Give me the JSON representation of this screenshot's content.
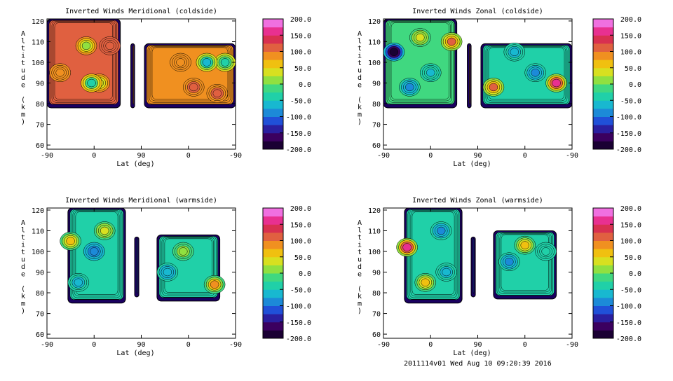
{
  "chart_data": [
    {
      "type": "contour",
      "title": "Inverted Winds Meridional (coldside)",
      "xlabel": "Lat (deg)",
      "ylabel": "Altitude (km)",
      "xticks": [
        "-90",
        "0",
        "90",
        "0",
        "-90"
      ],
      "yticks": [
        "60",
        "70",
        "80",
        "90",
        "100",
        "110",
        "120"
      ],
      "ylim": [
        58,
        121
      ],
      "colorbar_ticks": [
        "200.0",
        "150.0",
        "100.0",
        "50.0",
        "0.0",
        "-50.0",
        "-100.0",
        "-150.0",
        "-200.0"
      ],
      "zlim": [
        -200,
        200
      ],
      "regions": [
        {
          "lat_from": -90,
          "lat_to": 50,
          "alt_from": 78,
          "alt_to": 121,
          "base": 100,
          "blobs": [
            {
              "lat": -65,
              "alt": 95,
              "value": 95
            },
            {
              "lat": 30,
              "alt": 108,
              "value": 110
            },
            {
              "lat": 10,
              "alt": 90,
              "value": 30
            },
            {
              "lat": -5,
              "alt": 90,
              "value": -45
            },
            {
              "lat": -15,
              "alt": 108,
              "value": 10
            }
          ]
        },
        {
          "lat_from": 70,
          "lat_to": 72,
          "alt_from": 78,
          "alt_to": 109,
          "base": 78,
          "blobs": []
        },
        {
          "lat_from": 84,
          "lat_to": -90,
          "alt_from": 78,
          "alt_to": 109,
          "base": 78,
          "blobs": [
            {
              "lat": -10,
              "alt": 88,
              "value": 120
            },
            {
              "lat": -55,
              "alt": 85,
              "value": 110
            },
            {
              "lat": 15,
              "alt": 100,
              "value": 80
            },
            {
              "lat": -70,
              "alt": 100,
              "value": -40
            },
            {
              "lat": -35,
              "alt": 100,
              "value": -60
            }
          ]
        }
      ]
    },
    {
      "type": "contour",
      "title": "Inverted Winds Zonal (coldside)",
      "xlabel": "Lat (deg)",
      "ylabel": "Altitude (km)",
      "xticks": [
        "-90",
        "0",
        "90",
        "0",
        "-90"
      ],
      "yticks": [
        "60",
        "70",
        "80",
        "90",
        "100",
        "110",
        "120"
      ],
      "ylim": [
        58,
        121
      ],
      "colorbar_ticks": [
        "200.0",
        "150.0",
        "100.0",
        "50.0",
        "0.0",
        "-50.0",
        "-100.0",
        "-150.0",
        "-200.0"
      ],
      "zlim": [
        -200,
        200
      ],
      "regions": [
        {
          "lat_from": -90,
          "lat_to": 50,
          "alt_from": 78,
          "alt_to": 121,
          "base": -20,
          "blobs": [
            {
              "lat": -70,
              "alt": 105,
              "value": -200
            },
            {
              "lat": -40,
              "alt": 88,
              "value": -90
            },
            {
              "lat": 40,
              "alt": 110,
              "value": 100
            },
            {
              "lat": -20,
              "alt": 112,
              "value": 30
            },
            {
              "lat": 0,
              "alt": 95,
              "value": -60
            }
          ]
        },
        {
          "lat_from": 70,
          "lat_to": 72,
          "alt_from": 78,
          "alt_to": 109,
          "base": 78,
          "blobs": []
        },
        {
          "lat_from": 84,
          "lat_to": -90,
          "alt_from": 78,
          "alt_to": 109,
          "base": -30,
          "blobs": [
            {
              "lat": -60,
              "alt": 90,
              "value": 170
            },
            {
              "lat": 60,
              "alt": 88,
              "value": 100
            },
            {
              "lat": -20,
              "alt": 95,
              "value": -90
            },
            {
              "lat": 20,
              "alt": 105,
              "value": -60
            }
          ]
        }
      ]
    },
    {
      "type": "contour",
      "title": "Inverted Winds Meridional (warmside)",
      "xlabel": "Lat (deg)",
      "ylabel": "Altitude (km)",
      "xticks": [
        "-90",
        "0",
        "90",
        "0",
        "-90"
      ],
      "yticks": [
        "60",
        "70",
        "80",
        "90",
        "100",
        "110",
        "120"
      ],
      "ylim": [
        58,
        121
      ],
      "colorbar_ticks": [
        "200.0",
        "150.0",
        "100.0",
        "50.0",
        "0.0",
        "-50.0",
        "-100.0",
        "-150.0",
        "-200.0"
      ],
      "zlim": [
        -200,
        200
      ],
      "regions": [
        {
          "lat_from": -50,
          "lat_to": 60,
          "alt_from": 75,
          "alt_to": 121,
          "base": -40,
          "blobs": [
            {
              "lat": -45,
              "alt": 105,
              "value": 60
            },
            {
              "lat": 20,
              "alt": 110,
              "value": 40
            },
            {
              "lat": 0,
              "alt": 100,
              "value": -90
            },
            {
              "lat": -30,
              "alt": 85,
              "value": -60
            }
          ]
        },
        {
          "lat_from": 83,
          "lat_to": 72,
          "alt_from": 78,
          "alt_to": 107,
          "base": -100,
          "blobs": []
        },
        {
          "lat_from": 60,
          "lat_to": -60,
          "alt_from": 76,
          "alt_to": 108,
          "base": -40,
          "blobs": [
            {
              "lat": -50,
              "alt": 84,
              "value": 80
            },
            {
              "lat": 10,
              "alt": 100,
              "value": 20
            },
            {
              "lat": 40,
              "alt": 90,
              "value": -70
            }
          ]
        }
      ]
    },
    {
      "type": "contour",
      "title": "Inverted Winds Zonal (warmside)",
      "xlabel": "Lat (deg)",
      "ylabel": "Altitude (km)",
      "xticks": [
        "-90",
        "0",
        "90",
        "0",
        "-90"
      ],
      "yticks": [
        "60",
        "70",
        "80",
        "90",
        "100",
        "110",
        "120"
      ],
      "ylim": [
        58,
        121
      ],
      "colorbar_ticks": [
        "200.0",
        "150.0",
        "100.0",
        "50.0",
        "0.0",
        "-50.0",
        "-100.0",
        "-150.0",
        "-200.0"
      ],
      "zlim": [
        -200,
        200
      ],
      "regions": [
        {
          "lat_from": -50,
          "lat_to": 60,
          "alt_from": 75,
          "alt_to": 121,
          "base": -30,
          "blobs": [
            {
              "lat": -45,
              "alt": 102,
              "value": 150
            },
            {
              "lat": -10,
              "alt": 85,
              "value": 60
            },
            {
              "lat": 20,
              "alt": 110,
              "value": -80
            },
            {
              "lat": 30,
              "alt": 90,
              "value": -70
            }
          ]
        },
        {
          "lat_from": 83,
          "lat_to": 72,
          "alt_from": 78,
          "alt_to": 107,
          "base": -110,
          "blobs": []
        },
        {
          "lat_from": 60,
          "lat_to": -60,
          "alt_from": 77,
          "alt_to": 110,
          "base": -40,
          "blobs": [
            {
              "lat": 0,
              "alt": 103,
              "value": 60
            },
            {
              "lat": 30,
              "alt": 95,
              "value": -80
            },
            {
              "lat": -40,
              "alt": 100,
              "value": -50
            }
          ]
        }
      ]
    }
  ],
  "footer": "2011114v01 Wed Aug 10 09:20:39 2016"
}
